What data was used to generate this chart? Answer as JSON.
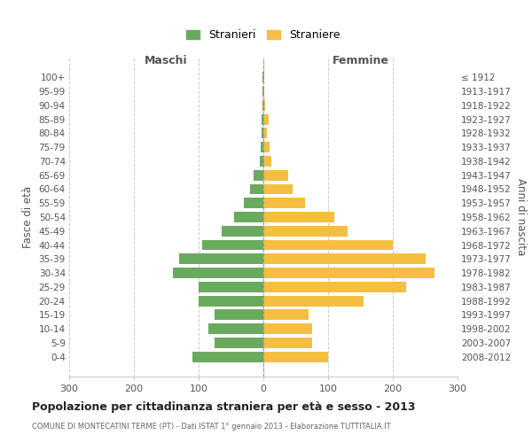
{
  "age_groups": [
    "0-4",
    "5-9",
    "10-14",
    "15-19",
    "20-24",
    "25-29",
    "30-34",
    "35-39",
    "40-44",
    "45-49",
    "50-54",
    "55-59",
    "60-64",
    "65-69",
    "70-74",
    "75-79",
    "80-84",
    "85-89",
    "90-94",
    "95-99",
    "100+"
  ],
  "birth_years": [
    "2008-2012",
    "2003-2007",
    "1998-2002",
    "1993-1997",
    "1988-1992",
    "1983-1987",
    "1978-1982",
    "1973-1977",
    "1968-1972",
    "1963-1967",
    "1958-1962",
    "1953-1957",
    "1948-1952",
    "1943-1947",
    "1938-1942",
    "1933-1937",
    "1928-1932",
    "1923-1927",
    "1918-1922",
    "1913-1917",
    "≤ 1912"
  ],
  "males": [
    110,
    75,
    85,
    75,
    100,
    100,
    140,
    130,
    95,
    65,
    45,
    30,
    20,
    15,
    5,
    4,
    3,
    3,
    2,
    1,
    1
  ],
  "females": [
    100,
    75,
    75,
    70,
    155,
    220,
    265,
    250,
    200,
    130,
    110,
    65,
    45,
    38,
    12,
    10,
    5,
    8,
    3,
    1,
    1
  ],
  "male_color": "#6aaa5f",
  "female_color": "#f5be41",
  "grid_color": "#cccccc",
  "title": "Popolazione per cittadinanza straniera per età e sesso - 2013",
  "subtitle": "COMUNE DI MONTECATINI TERME (PT) - Dati ISTAT 1° gennaio 2013 - Elaborazione TUTTITALIA.IT",
  "legend_male": "Stranieri",
  "legend_female": "Straniere",
  "xlabel_left": "Maschi",
  "xlabel_right": "Femmine",
  "ylabel_left": "Fasce di età",
  "ylabel_right": "Anni di nascita",
  "xlim": 300,
  "background_color": "#ffffff"
}
